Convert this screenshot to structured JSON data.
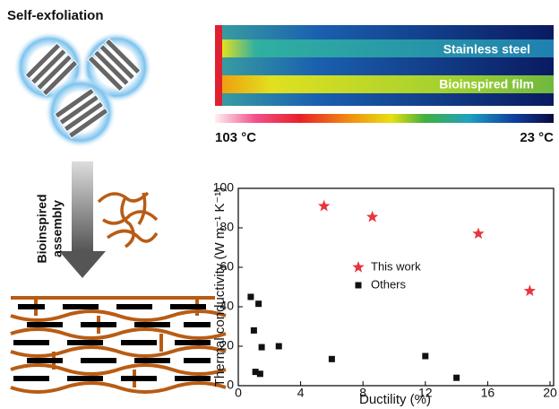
{
  "chart_data": {
    "type": "scatter",
    "xlabel": "Ductility (%)",
    "ylabel": "Thermal conductivity (W m⁻¹ K⁻¹)",
    "xlim": [
      0,
      20
    ],
    "xticks": [
      0,
      4,
      8,
      12,
      16,
      20
    ],
    "ylim": [
      0,
      100
    ],
    "yticks": [
      0,
      20,
      40,
      60,
      80,
      100
    ],
    "legend": "center",
    "series": [
      {
        "name": "This work",
        "color": "#e8343c",
        "marker": "star",
        "x": [
          5.5,
          8.6,
          15.4,
          18.7
        ],
        "values": [
          91,
          85.5,
          77,
          48
        ]
      },
      {
        "name": "Others",
        "color": "#111111",
        "marker": "square",
        "x": [
          0.8,
          1.0,
          1.3,
          1.5,
          2.6,
          1.1,
          1.4,
          6.0,
          12.0,
          14.0
        ],
        "values": [
          45,
          28,
          41.5,
          19.5,
          20,
          7,
          6,
          13.5,
          15,
          4
        ]
      }
    ]
  },
  "panels": {
    "exfoliation": "Self-exfoliation",
    "assembly": [
      "Bioinspired",
      "assembly"
    ],
    "steel": "Stainless steel",
    "film": "Bioinspired film",
    "hot": "103 °C",
    "cold": "23 °C"
  }
}
